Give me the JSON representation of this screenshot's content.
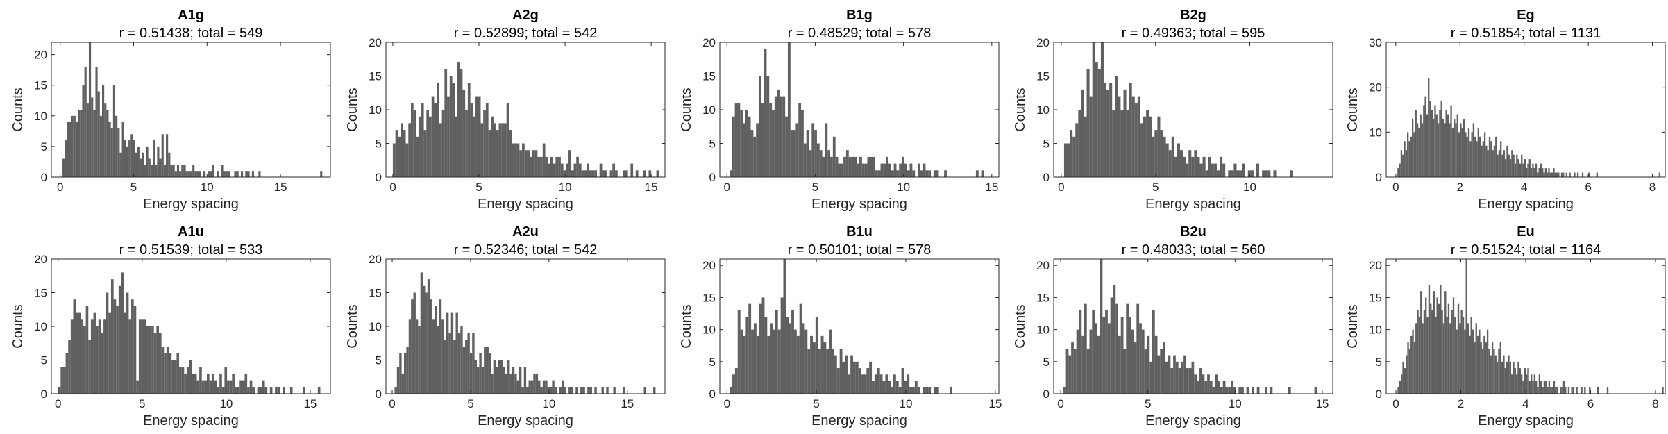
{
  "figure": {
    "bar_color": "#606060",
    "axis_color": "#262626"
  },
  "chart_data": [
    {
      "type": "bar",
      "title": "A1g",
      "subtitle": "r = 0.51438; total = 549",
      "xlabel": "Energy spacing",
      "ylabel": "Counts",
      "xlim": [
        -0.6,
        18.4
      ],
      "ylim": [
        0,
        22
      ],
      "xticks": [
        0,
        5,
        10,
        15
      ],
      "yticks": [
        0,
        5,
        10,
        15,
        20
      ],
      "bin_start": 0.0,
      "bin_width": 0.15,
      "values": [
        0,
        3,
        6,
        9,
        9,
        10,
        10,
        9,
        11,
        11,
        15,
        18,
        12,
        22,
        13,
        11,
        18,
        14,
        10,
        15,
        12,
        11,
        9,
        8,
        15,
        10,
        8,
        4,
        9,
        6,
        5,
        6,
        7,
        6,
        4,
        5,
        3,
        4,
        2,
        5,
        3,
        2,
        6,
        2,
        5,
        3,
        7,
        2,
        7,
        4,
        2,
        2,
        1,
        2,
        1,
        2,
        2,
        1,
        1,
        1,
        2,
        1,
        1,
        1,
        0,
        1,
        0,
        1,
        1,
        2,
        0,
        1,
        0,
        2,
        1,
        1,
        1,
        0,
        0,
        1,
        1,
        0,
        1,
        0,
        1,
        1,
        0,
        1,
        0,
        0,
        1,
        0,
        0,
        0,
        0,
        0,
        0,
        0,
        0,
        0,
        0,
        0,
        0,
        0,
        0,
        0,
        0,
        0,
        0,
        0,
        0,
        0,
        0,
        0,
        0,
        0,
        0,
        0,
        1
      ]
    },
    {
      "type": "bar",
      "title": "A2g",
      "subtitle": "r = 0.52899; total = 542",
      "xlabel": "Energy spacing",
      "ylabel": "Counts",
      "xlim": [
        -0.4,
        15.8
      ],
      "ylim": [
        0,
        20
      ],
      "xticks": [
        0,
        5,
        10,
        15
      ],
      "yticks": [
        0,
        5,
        10,
        15,
        20
      ],
      "bin_start": 0.0,
      "bin_width": 0.15,
      "values": [
        5,
        7,
        6,
        8,
        7,
        5,
        8,
        11,
        10,
        6,
        9,
        11,
        7,
        10,
        9,
        12,
        11,
        14,
        8,
        10,
        16,
        12,
        15,
        14,
        9,
        17,
        16,
        13,
        10,
        14,
        11,
        9,
        12,
        12,
        8,
        10,
        11,
        7,
        9,
        8,
        7,
        8,
        8,
        8,
        11,
        7,
        5,
        5,
        5,
        4,
        5,
        4,
        4,
        3,
        4,
        4,
        3,
        3,
        5,
        3,
        2,
        3,
        2,
        3,
        3,
        2,
        1,
        2,
        4,
        1,
        2,
        3,
        2,
        1,
        1,
        2,
        1,
        1,
        1,
        0,
        2,
        1,
        1,
        0,
        1,
        2,
        1,
        0,
        0,
        1,
        1,
        0,
        2,
        0,
        1,
        0,
        0,
        1,
        0,
        1,
        0,
        0,
        1,
        0,
        0,
        0,
        0,
        0
      ]
    },
    {
      "type": "bar",
      "title": "B1g",
      "subtitle": "r = 0.48529; total = 578",
      "xlabel": "Energy spacing",
      "ylabel": "Counts",
      "xlim": [
        -0.4,
        15.4
      ],
      "ylim": [
        0,
        20
      ],
      "xticks": [
        0,
        5,
        10,
        15
      ],
      "yticks": [
        0,
        5,
        10,
        15,
        20
      ],
      "bin_start": 0.0,
      "bin_width": 0.15,
      "values": [
        0,
        1,
        9,
        11,
        11,
        10,
        8,
        10,
        9,
        7,
        6,
        8,
        15,
        11,
        19,
        15,
        11,
        10,
        12,
        13,
        12,
        12,
        9,
        20,
        7,
        7,
        8,
        11,
        10,
        5,
        7,
        4,
        8,
        7,
        5,
        4,
        3,
        8,
        4,
        3,
        6,
        3,
        2,
        2,
        3,
        4,
        3,
        3,
        3,
        2,
        3,
        2,
        2,
        3,
        3,
        3,
        1,
        1,
        2,
        2,
        3,
        2,
        1,
        2,
        1,
        2,
        3,
        2,
        1,
        2,
        1,
        0,
        2,
        1,
        2,
        1,
        1,
        0,
        1,
        1,
        0,
        0,
        1,
        0,
        0,
        0,
        0,
        0,
        0,
        0,
        0,
        0,
        0,
        0,
        1,
        0,
        1,
        0,
        0,
        0,
        0,
        0
      ]
    },
    {
      "type": "bar",
      "title": "B2g",
      "subtitle": "r = 0.49363; total = 595",
      "xlabel": "Energy spacing",
      "ylabel": "Counts",
      "xlim": [
        -0.4,
        14.4
      ],
      "ylim": [
        0,
        20
      ],
      "xticks": [
        0,
        5,
        10
      ],
      "yticks": [
        0,
        5,
        10,
        15,
        20
      ],
      "bin_start": 0.0,
      "bin_width": 0.15,
      "values": [
        0,
        5,
        5,
        7,
        6,
        8,
        10,
        13,
        9,
        16,
        12,
        20,
        17,
        16,
        20,
        14,
        13,
        14,
        10,
        15,
        12,
        10,
        13,
        10,
        14,
        12,
        11,
        12,
        8,
        9,
        10,
        9,
        6,
        7,
        9,
        7,
        6,
        5,
        4,
        6,
        3,
        5,
        4,
        3,
        2,
        4,
        3,
        4,
        3,
        2,
        3,
        1,
        3,
        2,
        2,
        1,
        3,
        2,
        0,
        1,
        1,
        2,
        1,
        1,
        2,
        0,
        1,
        1,
        0,
        2,
        0,
        1,
        1,
        1,
        0,
        1,
        0,
        0,
        0,
        0,
        0,
        1
      ]
    },
    {
      "type": "bar",
      "title": "Eg",
      "subtitle": "r = 0.51854; total = 1131",
      "xlabel": "Energy spacing",
      "ylabel": "Counts",
      "xlim": [
        -0.3,
        8.4
      ],
      "ylim": [
        0,
        30
      ],
      "xticks": [
        0,
        2,
        4,
        6,
        8
      ],
      "yticks": [
        0,
        10,
        20,
        30
      ],
      "bin_start": 0.0,
      "bin_width": 0.05,
      "values": [
        0,
        2,
        3,
        6,
        5,
        8,
        6,
        10,
        8,
        9,
        13,
        10,
        15,
        12,
        11,
        14,
        12,
        16,
        18,
        14,
        22,
        17,
        15,
        13,
        16,
        14,
        12,
        15,
        17,
        13,
        12,
        15,
        14,
        12,
        16,
        11,
        13,
        12,
        14,
        10,
        12,
        11,
        13,
        10,
        9,
        11,
        8,
        10,
        12,
        9,
        8,
        11,
        9,
        7,
        8,
        10,
        7,
        6,
        9,
        8,
        6,
        7,
        9,
        5,
        6,
        8,
        5,
        6,
        4,
        7,
        5,
        4,
        6,
        5,
        3,
        5,
        4,
        3,
        5,
        3,
        4,
        2,
        3,
        4,
        2,
        3,
        2,
        3,
        1,
        2,
        3,
        2,
        1,
        2,
        1,
        2,
        1,
        1,
        2,
        1,
        1,
        1,
        0,
        1,
        1,
        0,
        1,
        0,
        1,
        0,
        0,
        1,
        0,
        1,
        0,
        0,
        1,
        0,
        0,
        0,
        1,
        0,
        0,
        0,
        0,
        1,
        0,
        0,
        0,
        0,
        0,
        0,
        0,
        0,
        0,
        0,
        0,
        0,
        0,
        0,
        0,
        0,
        0,
        0,
        0,
        0,
        0,
        0,
        0,
        0,
        0,
        0,
        0,
        0,
        0,
        0,
        0,
        0,
        0,
        0,
        0,
        0,
        0,
        0,
        1
      ]
    },
    {
      "type": "bar",
      "title": "A1u",
      "subtitle": "r = 0.51539; total = 533",
      "xlabel": "Energy spacing",
      "ylabel": "Counts",
      "xlim": [
        -0.4,
        16.2
      ],
      "ylim": [
        0,
        20
      ],
      "xticks": [
        0,
        5,
        10,
        15
      ],
      "yticks": [
        0,
        5,
        10,
        15,
        20
      ],
      "bin_start": 0.0,
      "bin_width": 0.15,
      "values": [
        1,
        4,
        4,
        6,
        8,
        11,
        14,
        12,
        12,
        11,
        10,
        13,
        8,
        11,
        12,
        10,
        11,
        9,
        11,
        15,
        12,
        17,
        14,
        13,
        16,
        18,
        12,
        15,
        11,
        14,
        13,
        2,
        11,
        11,
        11,
        10,
        10,
        10,
        9,
        10,
        9,
        7,
        6,
        7,
        6,
        5,
        5,
        6,
        4,
        4,
        3,
        4,
        5,
        3,
        3,
        2,
        4,
        2,
        2,
        3,
        2,
        3,
        2,
        1,
        3,
        1,
        4,
        2,
        2,
        3,
        1,
        1,
        2,
        2,
        3,
        1,
        2,
        1,
        0,
        1,
        1,
        2,
        1,
        0,
        1,
        0,
        1,
        1,
        0,
        1,
        0,
        0,
        1,
        0,
        0,
        0,
        0,
        1,
        0,
        0,
        0,
        0,
        0,
        1
      ]
    },
    {
      "type": "bar",
      "title": "A2u",
      "subtitle": "r = 0.52346; total = 542",
      "xlabel": "Energy spacing",
      "ylabel": "Counts",
      "xlim": [
        -0.4,
        17.4
      ],
      "ylim": [
        0,
        20
      ],
      "xticks": [
        0,
        5,
        10,
        15
      ],
      "yticks": [
        0,
        5,
        10,
        15,
        20
      ],
      "bin_start": 0.0,
      "bin_width": 0.15,
      "values": [
        0,
        1,
        4,
        6,
        3,
        6,
        7,
        11,
        14,
        15,
        11,
        10,
        18,
        16,
        15,
        17,
        14,
        11,
        13,
        10,
        14,
        11,
        8,
        12,
        9,
        12,
        8,
        12,
        9,
        10,
        7,
        8,
        9,
        6,
        9,
        5,
        4,
        6,
        4,
        7,
        7,
        6,
        3,
        5,
        4,
        5,
        5,
        4,
        3,
        5,
        3,
        4,
        3,
        2,
        4,
        1,
        4,
        1,
        2,
        2,
        3,
        3,
        2,
        1,
        2,
        2,
        1,
        1,
        2,
        1,
        0,
        1,
        2,
        1,
        0,
        1,
        1,
        0,
        1,
        0,
        1,
        1,
        0,
        1,
        1,
        0,
        1,
        0,
        0,
        1,
        0,
        1,
        0,
        0,
        1,
        0,
        0,
        0,
        1,
        0,
        0,
        0,
        0,
        0,
        0,
        0,
        0,
        1,
        0,
        0,
        0,
        1
      ]
    },
    {
      "type": "bar",
      "title": "B1u",
      "subtitle": "r = 0.50101; total = 578",
      "xlabel": "Energy spacing",
      "ylabel": "Counts",
      "xlim": [
        -0.4,
        15.2
      ],
      "ylim": [
        0,
        21
      ],
      "xticks": [
        0,
        5,
        10,
        15
      ],
      "yticks": [
        0,
        5,
        10,
        15,
        20
      ],
      "bin_start": 0.0,
      "bin_width": 0.15,
      "values": [
        0,
        1,
        3,
        4,
        13,
        10,
        9,
        12,
        14,
        10,
        11,
        9,
        14,
        15,
        12,
        9,
        11,
        10,
        13,
        10,
        15,
        21,
        12,
        11,
        13,
        10,
        9,
        14,
        11,
        10,
        7,
        9,
        8,
        12,
        7,
        9,
        8,
        7,
        10,
        7,
        6,
        4,
        7,
        5,
        6,
        3,
        6,
        5,
        5,
        4,
        3,
        3,
        4,
        5,
        2,
        3,
        4,
        3,
        2,
        3,
        2,
        1,
        3,
        2,
        1,
        4,
        2,
        3,
        1,
        1,
        2,
        1,
        0,
        1,
        1,
        1,
        0,
        1,
        1,
        0,
        0,
        0,
        0,
        1,
        0,
        0,
        0,
        0,
        0,
        0,
        0,
        0,
        0,
        0,
        0,
        0,
        0,
        0,
        0,
        0
      ]
    },
    {
      "type": "bar",
      "title": "B2u",
      "subtitle": "r = 0.48033; total = 560",
      "xlabel": "Energy spacing",
      "ylabel": "Counts",
      "xlim": [
        -0.4,
        15.6
      ],
      "ylim": [
        0,
        21
      ],
      "xticks": [
        0,
        5,
        10,
        15
      ],
      "yticks": [
        0,
        5,
        10,
        15,
        20
      ],
      "bin_start": 0.0,
      "bin_width": 0.15,
      "values": [
        0,
        1,
        7,
        6,
        8,
        7,
        10,
        13,
        9,
        14,
        7,
        10,
        13,
        11,
        9,
        21,
        12,
        13,
        11,
        15,
        17,
        14,
        9,
        12,
        7,
        14,
        12,
        10,
        8,
        14,
        11,
        10,
        7,
        9,
        5,
        13,
        9,
        6,
        7,
        8,
        5,
        6,
        4,
        6,
        5,
        4,
        5,
        6,
        4,
        4,
        5,
        3,
        2,
        4,
        3,
        2,
        3,
        2,
        1,
        3,
        2,
        1,
        2,
        1,
        1,
        2,
        1,
        0,
        1,
        1,
        0,
        1,
        0,
        1,
        0,
        1,
        0,
        0,
        1,
        0,
        1,
        0,
        0,
        0,
        0,
        0,
        0,
        1,
        0,
        0,
        0,
        0,
        0,
        0,
        0,
        0,
        0,
        1
      ]
    },
    {
      "type": "bar",
      "title": "Eu",
      "subtitle": "r = 0.51524; total = 1164",
      "xlabel": "Energy spacing",
      "ylabel": "Counts",
      "xlim": [
        -0.3,
        8.3
      ],
      "ylim": [
        0,
        21
      ],
      "xticks": [
        0,
        2,
        4,
        6,
        8
      ],
      "yticks": [
        0,
        5,
        10,
        15,
        20
      ],
      "bin_start": 0.0,
      "bin_width": 0.05,
      "values": [
        0,
        1,
        2,
        3,
        5,
        4,
        6,
        8,
        7,
        9,
        10,
        8,
        11,
        13,
        12,
        16,
        11,
        13,
        15,
        12,
        17,
        14,
        13,
        16,
        12,
        15,
        14,
        17,
        13,
        11,
        16,
        12,
        14,
        11,
        13,
        15,
        12,
        10,
        14,
        11,
        13,
        12,
        10,
        21,
        11,
        9,
        12,
        10,
        8,
        11,
        9,
        10,
        8,
        7,
        9,
        8,
        10,
        7,
        6,
        8,
        7,
        6,
        5,
        7,
        8,
        5,
        6,
        4,
        5,
        6,
        5,
        3,
        5,
        4,
        3,
        5,
        4,
        3,
        2,
        4,
        3,
        4,
        2,
        3,
        2,
        3,
        2,
        1,
        3,
        2,
        1,
        2,
        2,
        1,
        2,
        1,
        1,
        2,
        1,
        1,
        0,
        1,
        1,
        2,
        1,
        0,
        1,
        0,
        1,
        1,
        0,
        1,
        0,
        0,
        1,
        0,
        1,
        0,
        0,
        1,
        0,
        0,
        0,
        0,
        1,
        0,
        0,
        0,
        0,
        0,
        1,
        0,
        0,
        0,
        0,
        0,
        0,
        0,
        0,
        0,
        0,
        0,
        0,
        0,
        0,
        0,
        0,
        0,
        0,
        0,
        0,
        0,
        0,
        0,
        0,
        0,
        0,
        0,
        0,
        0,
        0,
        0,
        0,
        0,
        1
      ]
    }
  ]
}
